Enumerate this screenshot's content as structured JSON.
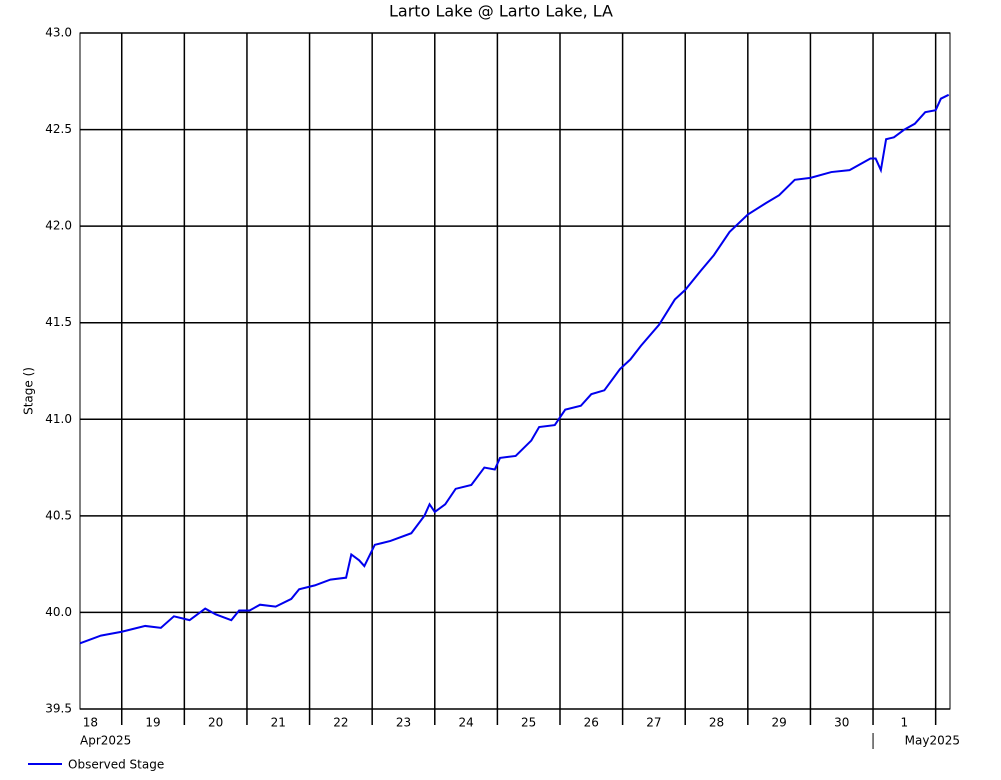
{
  "chart_data": {
    "type": "line",
    "title": "Larto Lake @ Larto Lake, LA",
    "y_label": "Stage ()",
    "x": [
      "2025-04-18T08:00",
      "2025-04-18T16:00",
      "2025-04-19T00:00",
      "2025-04-19T09:00",
      "2025-04-19T15:00",
      "2025-04-19T20:00",
      "2025-04-20T02:00",
      "2025-04-20T08:00",
      "2025-04-20T12:00",
      "2025-04-20T18:00",
      "2025-04-20T21:00",
      "2025-04-21T01:00",
      "2025-04-21T05:00",
      "2025-04-21T11:00",
      "2025-04-21T17:00",
      "2025-04-21T20:00",
      "2025-04-22T02:00",
      "2025-04-22T08:00",
      "2025-04-22T14:00",
      "2025-04-22T16:00",
      "2025-04-22T19:00",
      "2025-04-22T21:00",
      "2025-04-23T01:00",
      "2025-04-23T07:00",
      "2025-04-23T15:00",
      "2025-04-23T20:00",
      "2025-04-23T22:00",
      "2025-04-24T00:00",
      "2025-04-24T04:00",
      "2025-04-24T08:00",
      "2025-04-24T14:00",
      "2025-04-24T19:00",
      "2025-04-24T23:00",
      "2025-04-25T01:00",
      "2025-04-25T07:00",
      "2025-04-25T13:00",
      "2025-04-25T16:00",
      "2025-04-25T22:00",
      "2025-04-26T02:00",
      "2025-04-26T08:00",
      "2025-04-26T12:00",
      "2025-04-26T17:00",
      "2025-04-26T23:00",
      "2025-04-27T03:00",
      "2025-04-27T07:00",
      "2025-04-27T14:00",
      "2025-04-27T20:00",
      "2025-04-28T00:00",
      "2025-04-28T06:00",
      "2025-04-28T11:00",
      "2025-04-28T17:00",
      "2025-04-29T00:00",
      "2025-04-29T07:00",
      "2025-04-29T12:00",
      "2025-04-29T18:00",
      "2025-04-30T00:00",
      "2025-04-30T08:00",
      "2025-04-30T15:00",
      "2025-04-30T23:00",
      "2025-05-01T01:00",
      "2025-05-01T03:00",
      "2025-05-01T05:00",
      "2025-05-01T08:00",
      "2025-05-01T12:00",
      "2025-05-01T16:00",
      "2025-05-01T20:00",
      "2025-05-02T00:00",
      "2025-05-02T02:00",
      "2025-05-02T05:00"
    ],
    "series": [
      {
        "name": "Observed Stage",
        "color": "#0000ee",
        "values": [
          39.84,
          39.88,
          39.9,
          39.93,
          39.92,
          39.98,
          39.96,
          40.02,
          39.99,
          39.96,
          40.01,
          40.01,
          40.04,
          40.03,
          40.07,
          40.12,
          40.14,
          40.17,
          40.18,
          40.3,
          40.27,
          40.24,
          40.35,
          40.37,
          40.41,
          40.5,
          40.56,
          40.52,
          40.56,
          40.64,
          40.66,
          40.75,
          40.74,
          40.8,
          40.81,
          40.89,
          40.96,
          40.97,
          41.05,
          41.07,
          41.13,
          41.15,
          41.26,
          41.31,
          41.38,
          41.49,
          41.62,
          41.67,
          41.77,
          41.85,
          41.97,
          42.06,
          42.12,
          42.16,
          42.24,
          42.25,
          42.28,
          42.29,
          42.35,
          42.35,
          42.29,
          42.45,
          42.46,
          42.5,
          42.53,
          42.59,
          42.6,
          42.66,
          42.68
        ]
      }
    ],
    "xlim": [
      "2025-04-18T08:00",
      "2025-05-02T05:30"
    ],
    "xticks": [
      {
        "value": "2025-04-18T12:00",
        "label": "18"
      },
      {
        "value": "2025-04-19T12:00",
        "label": "19"
      },
      {
        "value": "2025-04-20T12:00",
        "label": "20"
      },
      {
        "value": "2025-04-21T12:00",
        "label": "21"
      },
      {
        "value": "2025-04-22T12:00",
        "label": "22"
      },
      {
        "value": "2025-04-23T12:00",
        "label": "23"
      },
      {
        "value": "2025-04-24T12:00",
        "label": "24"
      },
      {
        "value": "2025-04-25T12:00",
        "label": "25"
      },
      {
        "value": "2025-04-26T12:00",
        "label": "26"
      },
      {
        "value": "2025-04-27T12:00",
        "label": "27"
      },
      {
        "value": "2025-04-28T12:00",
        "label": "28"
      },
      {
        "value": "2025-04-29T12:00",
        "label": "29"
      },
      {
        "value": "2025-04-30T12:00",
        "label": "30"
      },
      {
        "value": "2025-05-01T12:00",
        "label": "1"
      }
    ],
    "xgrid": [
      "2025-04-19T00:00",
      "2025-04-20T00:00",
      "2025-04-21T00:00",
      "2025-04-22T00:00",
      "2025-04-23T00:00",
      "2025-04-24T00:00",
      "2025-04-25T00:00",
      "2025-04-26T00:00",
      "2025-04-27T00:00",
      "2025-04-28T00:00",
      "2025-04-29T00:00",
      "2025-04-30T00:00",
      "2025-05-01T00:00",
      "2025-05-02T00:00"
    ],
    "x_period_labels": [
      {
        "value": "2025-04-18T08:00",
        "label": "Apr2025"
      },
      {
        "value": "2025-05-01T00:00",
        "label": "May2025"
      }
    ],
    "ylim": [
      39.5,
      43.0
    ],
    "yticks": [
      39.5,
      {
        "value": 40,
        "label": "40.0"
      },
      40.5,
      {
        "value": 41,
        "label": "41.0"
      },
      41.5,
      {
        "value": 42,
        "label": "42.0"
      },
      42.5,
      {
        "value": 43,
        "label": "43.0"
      }
    ],
    "grid": true
  }
}
